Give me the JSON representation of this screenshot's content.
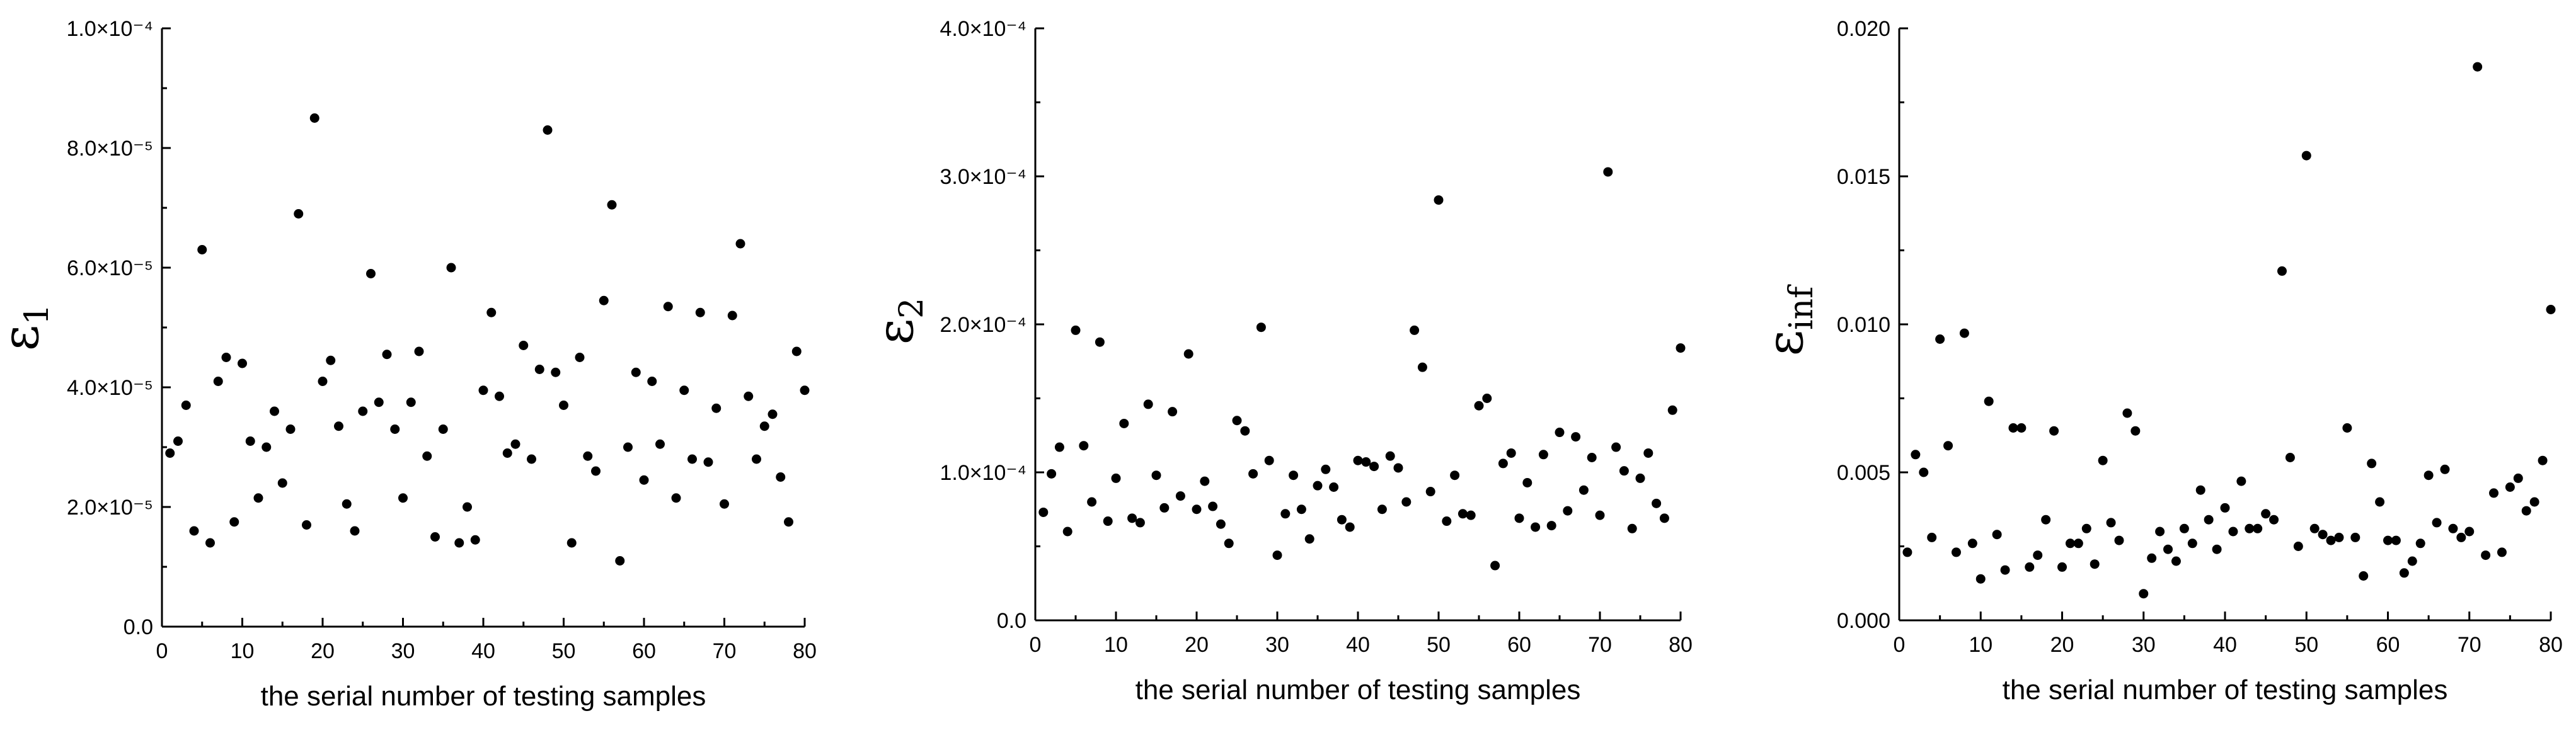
{
  "chart_data": [
    {
      "type": "scatter",
      "xlabel": "the serial number of testing samples",
      "ylabel": "ε1",
      "xlim": [
        0,
        80
      ],
      "ylim": [
        0,
        0.0001
      ],
      "xticks": [
        "0",
        "10",
        "20",
        "30",
        "40",
        "50",
        "60",
        "70",
        "80"
      ],
      "yticks": [
        "0.0",
        "2.0×10⁻⁵",
        "4.0×10⁻⁵",
        "6.0×10⁻⁵",
        "8.0×10⁻⁵",
        "1.0×10⁻⁴"
      ],
      "ytick_values": [
        0,
        2e-05,
        4e-05,
        6e-05,
        8e-05,
        0.0001
      ],
      "grid": false,
      "series": [
        {
          "x": [
            1,
            2,
            3,
            4,
            5,
            6,
            7,
            8,
            9,
            10,
            11,
            12,
            13,
            14,
            15,
            16,
            17,
            18,
            19,
            20,
            21,
            22,
            23,
            24,
            25,
            26,
            27,
            28,
            29,
            30,
            31,
            32,
            33,
            34,
            35,
            36,
            37,
            38,
            39,
            40,
            41,
            42,
            43,
            44,
            45,
            46,
            47,
            48,
            49,
            50,
            51,
            52,
            53,
            54,
            55,
            56,
            57,
            58,
            59,
            60,
            61,
            62,
            63,
            64,
            65,
            66,
            67,
            68,
            69,
            70,
            71,
            72,
            73,
            74,
            75,
            76,
            77,
            78,
            79,
            80
          ],
          "y": [
            2.9e-05,
            3.1e-05,
            3.7e-05,
            1.6e-05,
            6.3e-05,
            1.4e-05,
            4.1e-05,
            4.5e-05,
            1.75e-05,
            4.4e-05,
            3.1e-05,
            2.15e-05,
            3e-05,
            3.6e-05,
            2.4e-05,
            3.3e-05,
            6.9e-05,
            1.7e-05,
            8.5e-05,
            4.1e-05,
            4.45e-05,
            3.35e-05,
            2.05e-05,
            1.6e-05,
            3.6e-05,
            5.9e-05,
            3.75e-05,
            4.55e-05,
            3.3e-05,
            2.15e-05,
            3.75e-05,
            4.6e-05,
            2.85e-05,
            1.5e-05,
            3.3e-05,
            6e-05,
            1.4e-05,
            2e-05,
            1.45e-05,
            3.95e-05,
            5.25e-05,
            3.85e-05,
            2.9e-05,
            3.05e-05,
            4.7e-05,
            2.8e-05,
            4.3e-05,
            8.3e-05,
            4.25e-05,
            3.7e-05,
            1.4e-05,
            4.5e-05,
            2.85e-05,
            2.6e-05,
            5.45e-05,
            7.05e-05,
            1.1e-05,
            3e-05,
            4.25e-05,
            2.45e-05,
            4.1e-05,
            3.05e-05,
            5.35e-05,
            2.15e-05,
            3.95e-05,
            2.8e-05,
            5.25e-05,
            2.75e-05,
            3.65e-05,
            2.05e-05,
            5.2e-05,
            6.4e-05,
            3.85e-05,
            2.8e-05,
            3.35e-05,
            3.55e-05,
            2.5e-05,
            1.75e-05,
            4.6e-05,
            3.95e-05
          ]
        }
      ]
    },
    {
      "type": "scatter",
      "xlabel": "the serial number of testing samples",
      "ylabel": "ε2",
      "xlim": [
        0,
        80
      ],
      "ylim": [
        0,
        0.0004
      ],
      "xticks": [
        "0",
        "10",
        "20",
        "30",
        "40",
        "50",
        "60",
        "70",
        "80"
      ],
      "yticks": [
        "0.0",
        "1.0×10⁻⁴",
        "2.0×10⁻⁴",
        "3.0×10⁻⁴",
        "4.0×10⁻⁴"
      ],
      "ytick_values": [
        0,
        0.0001,
        0.0002,
        0.0003,
        0.0004
      ],
      "grid": false,
      "series": [
        {
          "x": [
            1,
            2,
            3,
            4,
            5,
            6,
            7,
            8,
            9,
            10,
            11,
            12,
            13,
            14,
            15,
            16,
            17,
            18,
            19,
            20,
            21,
            22,
            23,
            24,
            25,
            26,
            27,
            28,
            29,
            30,
            31,
            32,
            33,
            34,
            35,
            36,
            37,
            38,
            39,
            40,
            41,
            42,
            43,
            44,
            45,
            46,
            47,
            48,
            49,
            50,
            51,
            52,
            53,
            54,
            55,
            56,
            57,
            58,
            59,
            60,
            61,
            62,
            63,
            64,
            65,
            66,
            67,
            68,
            69,
            70,
            71,
            72,
            73,
            74,
            75,
            76,
            77,
            78,
            79,
            80
          ],
          "y": [
            7.3e-05,
            9.9e-05,
            0.000117,
            6e-05,
            0.000196,
            0.000118,
            8e-05,
            0.000188,
            6.7e-05,
            9.6e-05,
            0.000133,
            6.9e-05,
            6.6e-05,
            0.000146,
            9.8e-05,
            7.6e-05,
            0.000141,
            8.4e-05,
            0.00018,
            7.5e-05,
            9.4e-05,
            7.7e-05,
            6.5e-05,
            5.2e-05,
            0.000135,
            0.000128,
            9.9e-05,
            0.000198,
            0.000108,
            4.4e-05,
            7.2e-05,
            9.8e-05,
            7.5e-05,
            5.5e-05,
            9.1e-05,
            0.000102,
            9e-05,
            6.8e-05,
            6.3e-05,
            0.000108,
            0.000107,
            0.000104,
            7.5e-05,
            0.000111,
            0.000103,
            8e-05,
            0.000196,
            0.000171,
            8.7e-05,
            0.000284,
            6.7e-05,
            9.8e-05,
            7.2e-05,
            7.1e-05,
            0.000145,
            0.00015,
            3.7e-05,
            0.000106,
            0.000113,
            6.9e-05,
            9.3e-05,
            6.3e-05,
            0.000112,
            6.4e-05,
            0.000127,
            7.4e-05,
            0.000124,
            8.8e-05,
            0.00011,
            7.1e-05,
            0.000303,
            0.000117,
            0.000101,
            6.2e-05,
            9.6e-05,
            0.000113,
            7.9e-05,
            6.9e-05,
            0.000142,
            0.000184
          ]
        }
      ]
    },
    {
      "type": "scatter",
      "xlabel": "the serial number of testing samples",
      "ylabel": "εinf",
      "xlim": [
        0,
        80
      ],
      "ylim": [
        0,
        0.02
      ],
      "xticks": [
        "0",
        "10",
        "20",
        "30",
        "40",
        "50",
        "60",
        "70",
        "80"
      ],
      "yticks": [
        "0.000",
        "0.005",
        "0.010",
        "0.015",
        "0.020"
      ],
      "ytick_values": [
        0,
        0.005,
        0.01,
        0.015,
        0.02
      ],
      "grid": false,
      "series": [
        {
          "x": [
            1,
            2,
            3,
            4,
            5,
            6,
            7,
            8,
            9,
            10,
            11,
            12,
            13,
            14,
            15,
            16,
            17,
            18,
            19,
            20,
            21,
            22,
            23,
            24,
            25,
            26,
            27,
            28,
            29,
            30,
            31,
            32,
            33,
            34,
            35,
            36,
            37,
            38,
            39,
            40,
            41,
            42,
            43,
            44,
            45,
            46,
            47,
            48,
            49,
            50,
            51,
            52,
            53,
            54,
            55,
            56,
            57,
            58,
            59,
            60,
            61,
            62,
            63,
            64,
            65,
            66,
            67,
            68,
            69,
            70,
            71,
            72,
            73,
            74,
            75,
            76,
            77,
            78,
            79,
            80
          ],
          "y": [
            0.0023,
            0.0056,
            0.005,
            0.0028,
            0.0095,
            0.0059,
            0.0023,
            0.0097,
            0.0026,
            0.0014,
            0.0074,
            0.0029,
            0.0017,
            0.0065,
            0.0065,
            0.0018,
            0.0022,
            0.0034,
            0.0064,
            0.0018,
            0.0026,
            0.0026,
            0.0031,
            0.0019,
            0.0054,
            0.0033,
            0.0027,
            0.007,
            0.0064,
            0.0009,
            0.0021,
            0.003,
            0.0024,
            0.002,
            0.0031,
            0.0026,
            0.0044,
            0.0034,
            0.0024,
            0.0038,
            0.003,
            0.0047,
            0.0031,
            0.0031,
            0.0036,
            0.0034,
            0.0118,
            0.0055,
            0.0025,
            0.0157,
            0.0031,
            0.0029,
            0.0027,
            0.0028,
            0.0065,
            0.0028,
            0.0015,
            0.0053,
            0.004,
            0.0027,
            0.0027,
            0.0016,
            0.002,
            0.0026,
            0.0049,
            0.0033,
            0.0051,
            0.0031,
            0.0028,
            0.003,
            0.0187,
            0.0022,
            0.0043,
            0.0023,
            0.0045,
            0.0048,
            0.0037,
            0.004,
            0.0054,
            0.0105
          ]
        }
      ]
    }
  ]
}
